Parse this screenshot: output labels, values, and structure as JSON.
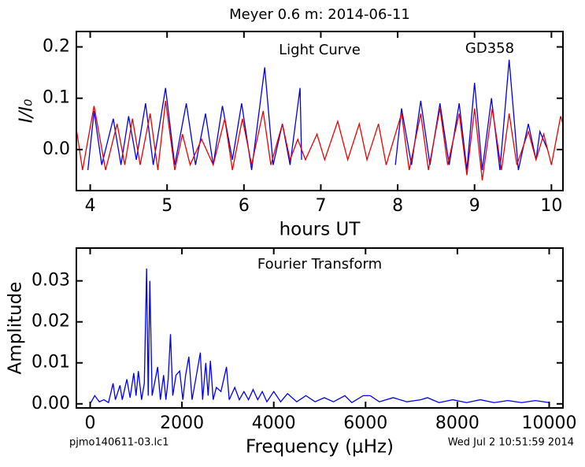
{
  "title": "Meyer 0.6 m:  2014-06-11",
  "footer_left": "pjmo140611-03.lc1",
  "footer_right": "Wed Jul  2 10:51:59 2014",
  "chart_data": [
    {
      "type": "line",
      "ylabel": "I/I₀",
      "xlabel": "hours UT",
      "annotations": [
        "Light Curve",
        "GD358"
      ],
      "xlim": [
        3.82,
        10.15
      ],
      "ylim": [
        -0.08,
        0.23
      ],
      "xticks": [
        4,
        5,
        6,
        7,
        8,
        9,
        10
      ],
      "yticks": [
        {
          "value": 0,
          "label": "0.0"
        },
        0.1,
        0.2
      ],
      "series": [
        {
          "color": "#0000ee",
          "x": [
            3.97,
            4.05,
            4.15,
            4.3,
            4.4,
            4.5,
            4.6,
            4.72,
            4.82,
            4.98,
            5.1,
            5.25,
            5.37,
            5.5,
            5.6,
            5.72,
            5.85,
            5.97,
            6.1,
            6.27,
            6.38,
            6.5,
            6.6,
            6.73,
            6.75,
            7.3,
            7.97,
            8.05,
            8.18,
            8.3,
            8.42,
            8.55,
            8.67,
            8.8,
            8.9,
            9.0,
            9.1,
            9.22,
            9.33,
            9.45,
            9.57,
            9.7,
            9.8,
            9.85,
            9.95
          ],
          "values": [
            -0.04,
            0.075,
            -0.03,
            0.06,
            -0.03,
            0.065,
            -0.02,
            0.09,
            -0.03,
            0.12,
            -0.03,
            0.09,
            -0.03,
            0.07,
            -0.03,
            0.085,
            -0.02,
            0.09,
            -0.04,
            0.16,
            -0.03,
            0.05,
            -0.03,
            0.12,
            -0.02,
            null,
            -0.03,
            0.08,
            -0.03,
            0.095,
            -0.03,
            0.09,
            -0.03,
            0.09,
            -0.04,
            0.13,
            -0.04,
            0.1,
            -0.04,
            0.175,
            -0.04,
            0.05,
            -0.02,
            0.035,
            0.0
          ]
        },
        {
          "color": "#ee0000",
          "x": [
            3.8,
            3.9,
            4.05,
            4.2,
            4.35,
            4.45,
            4.55,
            4.65,
            4.78,
            4.88,
            4.98,
            5.1,
            5.2,
            5.3,
            5.45,
            5.6,
            5.75,
            5.85,
            5.98,
            6.1,
            6.25,
            6.35,
            6.5,
            6.6,
            6.7,
            6.8,
            6.95,
            7.05,
            7.22,
            7.35,
            7.5,
            7.6,
            7.75,
            7.85,
            8.05,
            8.15,
            8.3,
            8.4,
            8.55,
            8.65,
            8.8,
            8.9,
            9.0,
            9.1,
            9.23,
            9.35,
            9.45,
            9.55,
            9.7,
            9.8,
            9.9,
            10.0,
            10.12,
            10.15
          ],
          "values": [
            0.06,
            -0.04,
            0.085,
            -0.04,
            0.05,
            -0.03,
            0.06,
            -0.03,
            0.07,
            -0.04,
            0.095,
            -0.04,
            0.03,
            -0.03,
            0.02,
            -0.03,
            0.06,
            -0.04,
            0.06,
            -0.03,
            0.075,
            -0.03,
            0.05,
            -0.02,
            0.02,
            -0.02,
            0.03,
            -0.02,
            0.055,
            -0.02,
            0.05,
            -0.02,
            0.05,
            -0.03,
            0.07,
            -0.04,
            0.07,
            -0.04,
            0.08,
            -0.03,
            0.07,
            -0.05,
            0.08,
            -0.06,
            0.08,
            -0.04,
            0.07,
            -0.03,
            0.035,
            -0.02,
            0.03,
            -0.03,
            0.065,
            0.05
          ]
        }
      ]
    },
    {
      "type": "line",
      "ylabel": "Amplitude",
      "xlabel": "Frequency (μHz)",
      "annotations": [
        "Fourier Transform"
      ],
      "xlim": [
        -300,
        10300
      ],
      "ylim": [
        -0.001,
        0.038
      ],
      "xticks": [
        0,
        2000,
        4000,
        6000,
        8000,
        10000
      ],
      "yticks": [
        {
          "value": 0,
          "label": "0.00"
        },
        0.01,
        0.02,
        0.03
      ],
      "series": [
        {
          "color": "#0000ee",
          "x": [
            0,
            100,
            200,
            300,
            400,
            500,
            550,
            650,
            700,
            800,
            870,
            950,
            1000,
            1050,
            1120,
            1180,
            1230,
            1265,
            1300,
            1350,
            1420,
            1470,
            1530,
            1600,
            1650,
            1700,
            1750,
            1800,
            1870,
            1950,
            2020,
            2080,
            2150,
            2220,
            2300,
            2400,
            2450,
            2520,
            2570,
            2620,
            2680,
            2750,
            2850,
            2970,
            3030,
            3150,
            3250,
            3350,
            3450,
            3550,
            3650,
            3750,
            3850,
            4000,
            4150,
            4300,
            4500,
            4700,
            4900,
            5100,
            5300,
            5550,
            5700,
            5950,
            6100,
            6300,
            6600,
            6900,
            7200,
            7350,
            7600,
            7900,
            8200,
            8500,
            8800,
            9100,
            9400,
            9700,
            10000
          ],
          "values": [
            0.0,
            0.002,
            0.0005,
            0.001,
            0.0003,
            0.005,
            0.001,
            0.0045,
            0.001,
            0.006,
            0.0015,
            0.0075,
            0.002,
            0.008,
            0.001,
            0.005,
            0.033,
            0.002,
            0.03,
            0.002,
            0.006,
            0.009,
            0.001,
            0.007,
            0.001,
            0.006,
            0.017,
            0.002,
            0.007,
            0.008,
            0.001,
            0.007,
            0.0115,
            0.001,
            0.006,
            0.0125,
            0.001,
            0.01,
            0.002,
            0.0105,
            0.001,
            0.004,
            0.003,
            0.009,
            0.001,
            0.004,
            0.001,
            0.003,
            0.001,
            0.0035,
            0.001,
            0.003,
            0.0005,
            0.003,
            0.0005,
            0.0025,
            0.0005,
            0.002,
            0.0005,
            0.0015,
            0.0005,
            0.002,
            0.0003,
            0.002,
            0.002,
            0.0005,
            0.0015,
            0.0005,
            0.001,
            0.0015,
            0.0003,
            0.001,
            0.0003,
            0.001,
            0.0003,
            0.0008,
            0.0003,
            0.0008,
            0.0003
          ]
        }
      ]
    }
  ]
}
